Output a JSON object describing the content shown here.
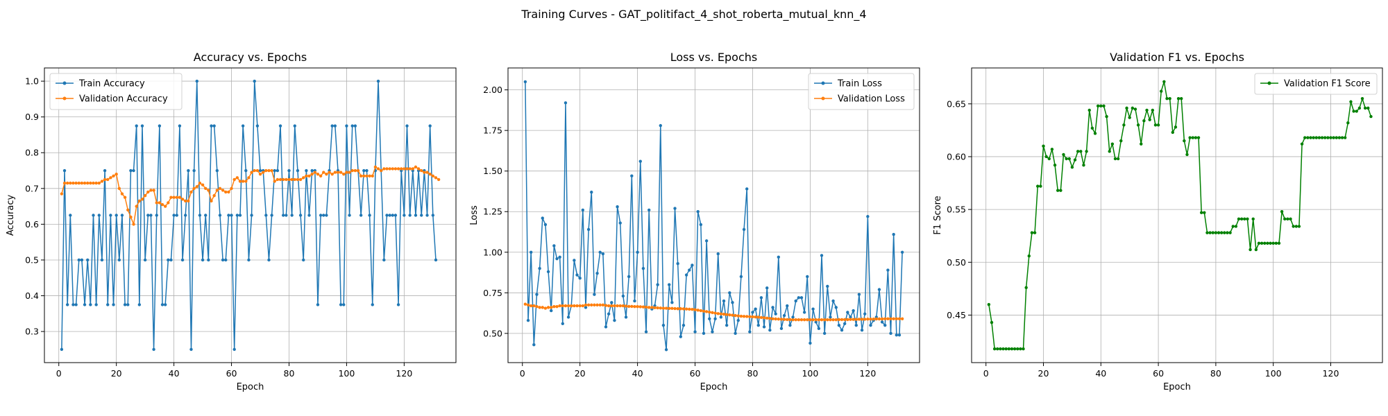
{
  "suptitle": "Training Curves - GAT_politifact_4_shot_roberta_mutual_knn_4",
  "colors": {
    "train": "#1f77b4",
    "val": "#ff7f0e",
    "f1": "#008000",
    "grid": "#b0b0b0"
  },
  "chart_data": [
    {
      "type": "line",
      "title": "Accuracy vs. Epochs",
      "xlabel": "Epoch",
      "ylabel": "Accuracy",
      "xlim": [
        -5,
        138
      ],
      "ylim": [
        0.213,
        1.037
      ],
      "xticks": [
        0,
        20,
        40,
        60,
        80,
        100,
        120
      ],
      "yticks": [
        0.3,
        0.4,
        0.5,
        0.6,
        0.7,
        0.8,
        0.9,
        1.0
      ],
      "ytick_labels": [
        "0.3",
        "0.4",
        "0.5",
        "0.6",
        "0.7",
        "0.8",
        "0.9",
        "1.0"
      ],
      "grid": true,
      "legend_position": "upper-left",
      "series": [
        {
          "name": "Train Accuracy",
          "color_key": "train",
          "values": [
            0.25,
            0.75,
            0.375,
            0.625,
            0.375,
            0.375,
            0.5,
            0.5,
            0.375,
            0.5,
            0.375,
            0.625,
            0.375,
            0.625,
            0.5,
            0.75,
            0.375,
            0.625,
            0.375,
            0.625,
            0.5,
            0.625,
            0.375,
            0.375,
            0.75,
            0.75,
            0.875,
            0.375,
            0.875,
            0.5,
            0.625,
            0.625,
            0.25,
            0.625,
            0.875,
            0.375,
            0.375,
            0.5,
            0.5,
            0.625,
            0.625,
            0.875,
            0.5,
            0.625,
            0.75,
            0.25,
            0.75,
            1.0,
            0.625,
            0.5,
            0.625,
            0.5,
            0.875,
            0.875,
            0.75,
            0.625,
            0.5,
            0.5,
            0.625,
            0.625,
            0.25,
            0.625,
            0.625,
            0.875,
            0.75,
            0.5,
            0.625,
            1.0,
            0.875,
            0.75,
            0.75,
            0.625,
            0.5,
            0.625,
            0.75,
            0.75,
            0.875,
            0.625,
            0.625,
            0.75,
            0.625,
            0.875,
            0.75,
            0.625,
            0.5,
            0.75,
            0.625,
            0.75,
            0.75,
            0.375,
            0.625,
            0.625,
            0.625,
            0.75,
            0.875,
            0.875,
            0.75,
            0.375,
            0.375,
            0.875,
            0.625,
            0.875,
            0.875,
            0.75,
            0.625,
            0.75,
            0.75,
            0.625,
            0.375,
            0.75,
            1.0,
            0.75,
            0.5,
            0.625,
            0.625,
            0.625,
            0.625,
            0.375,
            0.75,
            0.625,
            0.875,
            0.625,
            0.75,
            0.625,
            0.75,
            0.625,
            0.75,
            0.625,
            0.875,
            0.625,
            0.5
          ]
        },
        {
          "name": "Validation Accuracy",
          "color_key": "val",
          "values": [
            0.685,
            0.715,
            0.715,
            0.715,
            0.715,
            0.715,
            0.715,
            0.715,
            0.715,
            0.715,
            0.715,
            0.715,
            0.715,
            0.715,
            0.72,
            0.725,
            0.725,
            0.73,
            0.735,
            0.74,
            0.7,
            0.685,
            0.675,
            0.64,
            0.62,
            0.6,
            0.65,
            0.665,
            0.67,
            0.68,
            0.69,
            0.695,
            0.695,
            0.66,
            0.66,
            0.655,
            0.65,
            0.66,
            0.675,
            0.675,
            0.675,
            0.675,
            0.67,
            0.665,
            0.665,
            0.69,
            0.7,
            0.705,
            0.715,
            0.71,
            0.7,
            0.695,
            0.665,
            0.68,
            0.695,
            0.7,
            0.695,
            0.69,
            0.69,
            0.7,
            0.725,
            0.73,
            0.72,
            0.72,
            0.72,
            0.73,
            0.745,
            0.75,
            0.75,
            0.74,
            0.745,
            0.75,
            0.75,
            0.75,
            0.72,
            0.725,
            0.725,
            0.725,
            0.725,
            0.725,
            0.725,
            0.725,
            0.725,
            0.725,
            0.73,
            0.735,
            0.735,
            0.74,
            0.745,
            0.74,
            0.735,
            0.745,
            0.74,
            0.745,
            0.74,
            0.745,
            0.745,
            0.745,
            0.74,
            0.745,
            0.745,
            0.75,
            0.75,
            0.75,
            0.735,
            0.735,
            0.735,
            0.735,
            0.735,
            0.76,
            0.755,
            0.75,
            0.755,
            0.755,
            0.755,
            0.755,
            0.755,
            0.755,
            0.755,
            0.755,
            0.755,
            0.755,
            0.755,
            0.76,
            0.755,
            0.75,
            0.745,
            0.745,
            0.74,
            0.735,
            0.73,
            0.725
          ]
        }
      ]
    },
    {
      "type": "line",
      "title": "Loss vs. Epochs",
      "xlabel": "Epoch",
      "ylabel": "Loss",
      "xlim": [
        -5,
        138
      ],
      "ylim": [
        0.32,
        2.135
      ],
      "xticks": [
        0,
        20,
        40,
        60,
        80,
        100,
        120
      ],
      "yticks": [
        0.5,
        0.75,
        1.0,
        1.25,
        1.5,
        1.75,
        2.0
      ],
      "ytick_labels": [
        "0.50",
        "0.75",
        "1.00",
        "1.25",
        "1.50",
        "1.75",
        "2.00"
      ],
      "grid": true,
      "legend_position": "upper-right",
      "series": [
        {
          "name": "Train Loss",
          "color_key": "train",
          "values": [
            2.05,
            0.58,
            1.0,
            0.43,
            0.74,
            0.9,
            1.21,
            1.17,
            0.88,
            0.64,
            1.04,
            0.96,
            0.97,
            0.56,
            1.92,
            0.6,
            0.67,
            0.95,
            0.86,
            0.84,
            1.26,
            0.66,
            1.14,
            1.37,
            0.74,
            0.87,
            1.0,
            0.99,
            0.54,
            0.62,
            0.69,
            0.58,
            1.28,
            1.18,
            0.73,
            0.6,
            0.85,
            1.47,
            0.7,
            1.0,
            1.56,
            0.9,
            0.51,
            1.26,
            0.65,
            0.67,
            0.8,
            1.78,
            0.55,
            0.4,
            0.8,
            0.69,
            1.27,
            0.93,
            0.48,
            0.55,
            0.86,
            0.89,
            0.92,
            0.51,
            1.25,
            1.17,
            0.5,
            1.07,
            0.59,
            0.51,
            0.59,
            0.99,
            0.6,
            0.7,
            0.55,
            0.75,
            0.69,
            0.5,
            0.58,
            0.85,
            1.14,
            1.39,
            0.51,
            0.63,
            0.65,
            0.55,
            0.72,
            0.54,
            0.78,
            0.52,
            0.66,
            0.62,
            0.97,
            0.53,
            0.61,
            0.67,
            0.55,
            0.6,
            0.7,
            0.72,
            0.72,
            0.63,
            0.85,
            0.44,
            0.65,
            0.57,
            0.53,
            0.98,
            0.5,
            0.79,
            0.6,
            0.7,
            0.66,
            0.55,
            0.52,
            0.56,
            0.63,
            0.6,
            0.64,
            0.55,
            0.74,
            0.52,
            0.62,
            1.22,
            0.55,
            0.58,
            0.6,
            0.77,
            0.57,
            0.55,
            0.89,
            0.5,
            1.11,
            0.49,
            0.49,
            1.0
          ]
        },
        {
          "name": "Validation Loss",
          "color_key": "val",
          "values": [
            0.68,
            0.675,
            0.67,
            0.67,
            0.665,
            0.66,
            0.66,
            0.655,
            0.66,
            0.66,
            0.665,
            0.665,
            0.67,
            0.67,
            0.67,
            0.67,
            0.67,
            0.67,
            0.67,
            0.67,
            0.67,
            0.675,
            0.675,
            0.675,
            0.675,
            0.675,
            0.675,
            0.675,
            0.672,
            0.67,
            0.67,
            0.67,
            0.67,
            0.67,
            0.67,
            0.668,
            0.666,
            0.666,
            0.665,
            0.665,
            0.664,
            0.663,
            0.662,
            0.66,
            0.66,
            0.658,
            0.657,
            0.656,
            0.655,
            0.655,
            0.654,
            0.654,
            0.653,
            0.652,
            0.652,
            0.651,
            0.65,
            0.649,
            0.648,
            0.646,
            0.643,
            0.64,
            0.637,
            0.634,
            0.631,
            0.628,
            0.625,
            0.622,
            0.62,
            0.618,
            0.616,
            0.614,
            0.612,
            0.61,
            0.608,
            0.606,
            0.605,
            0.604,
            0.603,
            0.602,
            0.601,
            0.6,
            0.598,
            0.596,
            0.594,
            0.592,
            0.59,
            0.589,
            0.588,
            0.587,
            0.586,
            0.585,
            0.585,
            0.584,
            0.584,
            0.584,
            0.584,
            0.584,
            0.584,
            0.584,
            0.584,
            0.584,
            0.584,
            0.584,
            0.584,
            0.584,
            0.584,
            0.584,
            0.584,
            0.585,
            0.585,
            0.585,
            0.585,
            0.586,
            0.586,
            0.586,
            0.587,
            0.587,
            0.587,
            0.588,
            0.588,
            0.588,
            0.589,
            0.589,
            0.589,
            0.59,
            0.59,
            0.59,
            0.59,
            0.59,
            0.59,
            0.59
          ]
        }
      ]
    },
    {
      "type": "line",
      "title": "Validation F1 vs. Epochs",
      "xlabel": "Epoch",
      "ylabel": "F1 Score",
      "xlim": [
        -5,
        138
      ],
      "ylim": [
        0.405,
        0.684
      ],
      "xticks": [
        0,
        20,
        40,
        60,
        80,
        100,
        120
      ],
      "yticks": [
        0.45,
        0.5,
        0.55,
        0.6,
        0.65
      ],
      "ytick_labels": [
        "0.45",
        "0.50",
        "0.55",
        "0.60",
        "0.65"
      ],
      "grid": true,
      "legend_position": "upper-right",
      "series": [
        {
          "name": "Validation F1 Score",
          "color_key": "f1",
          "values": [
            0.46,
            0.443,
            0.418,
            0.418,
            0.418,
            0.418,
            0.418,
            0.418,
            0.418,
            0.418,
            0.418,
            0.418,
            0.418,
            0.476,
            0.506,
            0.528,
            0.528,
            0.572,
            0.572,
            0.61,
            0.6,
            0.598,
            0.607,
            0.592,
            0.568,
            0.568,
            0.602,
            0.598,
            0.598,
            0.59,
            0.597,
            0.605,
            0.605,
            0.592,
            0.605,
            0.644,
            0.627,
            0.622,
            0.648,
            0.648,
            0.648,
            0.638,
            0.605,
            0.612,
            0.598,
            0.598,
            0.615,
            0.63,
            0.646,
            0.637,
            0.646,
            0.645,
            0.63,
            0.612,
            0.634,
            0.644,
            0.635,
            0.644,
            0.63,
            0.63,
            0.662,
            0.671,
            0.655,
            0.655,
            0.623,
            0.628,
            0.655,
            0.655,
            0.615,
            0.602,
            0.618,
            0.618,
            0.618,
            0.618,
            0.547,
            0.547,
            0.528,
            0.528,
            0.528,
            0.528,
            0.528,
            0.528,
            0.528,
            0.528,
            0.528,
            0.534,
            0.534,
            0.541,
            0.541,
            0.541,
            0.541,
            0.512,
            0.541,
            0.512,
            0.518,
            0.518,
            0.518,
            0.518,
            0.518,
            0.518,
            0.518,
            0.518,
            0.548,
            0.541,
            0.541,
            0.541,
            0.534,
            0.534,
            0.534,
            0.612,
            0.618,
            0.618,
            0.618,
            0.618,
            0.618,
            0.618,
            0.618,
            0.618,
            0.618,
            0.618,
            0.618,
            0.618,
            0.618,
            0.618,
            0.618,
            0.632,
            0.652,
            0.643,
            0.643,
            0.646,
            0.655,
            0.646,
            0.646,
            0.638
          ]
        }
      ]
    }
  ]
}
